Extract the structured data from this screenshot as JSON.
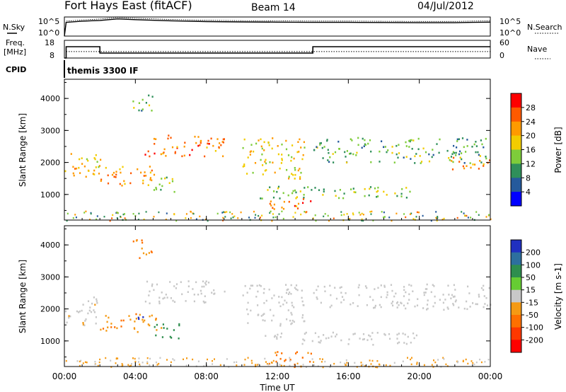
{
  "header": {
    "radar": "Fort Hays East (fitACF)",
    "beam": "Beam 14",
    "date": "04/Jul/2012"
  },
  "panels": {
    "nsky_label": "N.Sky",
    "nsearch_label": "N.Search",
    "noise_ticks_left": [
      "10^5",
      "10^0"
    ],
    "noise_ticks_right": [
      "10^5",
      "10^0"
    ],
    "freq_label_1": "Freq.",
    "freq_label_2": "[MHz]",
    "freq_ticks": [
      "18",
      "8"
    ],
    "nave_label": "Nave",
    "nave_ticks": [
      "60",
      "0"
    ],
    "cpid_label": "CPID",
    "cpid_value": "themis 3300 IF"
  },
  "chart_data": [
    {
      "type": "line",
      "title": "N.Sky / N.Search",
      "x_hours": [
        0,
        0.1,
        1,
        2,
        3,
        4,
        6,
        8,
        10,
        12,
        14,
        16,
        18,
        20,
        22,
        23,
        24
      ],
      "nsky_norm": [
        0.0,
        0.72,
        0.78,
        0.82,
        0.9,
        0.86,
        0.8,
        0.76,
        0.74,
        0.73,
        0.72,
        0.72,
        0.71,
        0.7,
        0.7,
        0.72,
        0.73
      ]
    },
    {
      "type": "line",
      "title": "Freq / Nave",
      "freq_mhz_steps": [
        {
          "x0": 0,
          "x1": 0.1,
          "v": 8
        },
        {
          "x0": 0.1,
          "x1": 2.0,
          "v": 14.4
        },
        {
          "x0": 2.0,
          "x1": 14.0,
          "v": 10.8
        },
        {
          "x0": 14.0,
          "x1": 24,
          "v": 14.4
        }
      ],
      "nave_level": 22,
      "ylim_freq": [
        8,
        18
      ],
      "ylim_nave": [
        0,
        60
      ]
    },
    {
      "type": "heatmap",
      "title": "Power",
      "xlabel": "",
      "ylabel": "Slant Range [km]",
      "xlim": [
        0,
        24
      ],
      "ylim": [
        200,
        4600
      ],
      "yticks": [
        1000,
        2000,
        3000,
        4000
      ],
      "colorbar_label": "Power [dB]",
      "colorbar_ticks": [
        "28",
        "24",
        "20",
        "16",
        "12",
        "8",
        "4"
      ],
      "colorbar_colors": [
        "#ff0000",
        "#ff5a00",
        "#ff9a00",
        "#f2cc00",
        "#7ecc3a",
        "#2f8f5a",
        "#255a9c",
        "#0000ff"
      ],
      "features": [
        {
          "x0": 0.0,
          "x1": 2.0,
          "r0": 1500,
          "r1": 2400,
          "v": 18
        },
        {
          "x0": 2.0,
          "x1": 5.5,
          "r0": 1300,
          "r1": 1900,
          "v": 20
        },
        {
          "x0": 4.5,
          "x1": 9.0,
          "r0": 2200,
          "r1": 2900,
          "v": 22
        },
        {
          "x0": 5.0,
          "x1": 6.5,
          "r0": 1100,
          "r1": 1600,
          "v": 14
        },
        {
          "x0": 3.8,
          "x1": 5.0,
          "r0": 3600,
          "r1": 4200,
          "v": 10
        },
        {
          "x0": 10.0,
          "x1": 13.5,
          "r0": 1500,
          "r1": 2800,
          "v": 16
        },
        {
          "x0": 11.0,
          "x1": 20.0,
          "r0": 900,
          "r1": 1300,
          "v": 12
        },
        {
          "x0": 11.5,
          "x1": 14.0,
          "r0": 500,
          "r1": 900,
          "v": 22
        },
        {
          "x0": 14.0,
          "x1": 24.0,
          "r0": 2000,
          "r1": 2800,
          "v": 10
        },
        {
          "x0": 21.5,
          "x1": 24.0,
          "r0": 1800,
          "r1": 2200,
          "v": 20
        }
      ]
    },
    {
      "type": "heatmap",
      "title": "Velocity",
      "xlabel": "Time UT",
      "ylabel": "Slant Range [km]",
      "xlim": [
        0,
        24
      ],
      "ylim": [
        200,
        4600
      ],
      "yticks": [
        1000,
        2000,
        3000,
        4000
      ],
      "xticks": [
        "00:00",
        "04:00",
        "08:00",
        "12:00",
        "16:00",
        "20:00",
        "00:00"
      ],
      "colorbar_label": "Velocity [m s-1]",
      "colorbar_ticks": [
        "200",
        "100",
        "50",
        "15",
        "-15",
        "-50",
        "-100",
        "-200"
      ],
      "colorbar_colors": [
        "#2030c0",
        "#2d6f9e",
        "#2e8e4e",
        "#66cc33",
        "#c8c8c8",
        "#f59a14",
        "#ff7000",
        "#ff3800",
        "#ff0000"
      ],
      "features": [
        {
          "x0": 0.0,
          "x1": 2.0,
          "r0": 1500,
          "r1": 2400,
          "v": -5
        },
        {
          "x0": 2.0,
          "x1": 5.5,
          "r0": 1300,
          "r1": 1900,
          "v": -40
        },
        {
          "x0": 4.5,
          "x1": 9.0,
          "r0": 2200,
          "r1": 2900,
          "v": 0
        },
        {
          "x0": 5.0,
          "x1": 6.5,
          "r0": 1100,
          "r1": 1600,
          "v": 60
        },
        {
          "x0": 3.8,
          "x1": 5.0,
          "r0": 3600,
          "r1": 4200,
          "v": -50
        },
        {
          "x0": 10.0,
          "x1": 13.5,
          "r0": 1500,
          "r1": 2800,
          "v": 0
        },
        {
          "x0": 11.0,
          "x1": 20.0,
          "r0": 900,
          "r1": 1300,
          "v": 0
        },
        {
          "x0": 11.5,
          "x1": 14.0,
          "r0": 200,
          "r1": 700,
          "v": -60
        },
        {
          "x0": 14.0,
          "x1": 24.0,
          "r0": 2000,
          "r1": 2800,
          "v": 0
        },
        {
          "x0": 4.0,
          "x1": 4.6,
          "r0": 1500,
          "r1": 1800,
          "v": 150
        }
      ]
    }
  ]
}
